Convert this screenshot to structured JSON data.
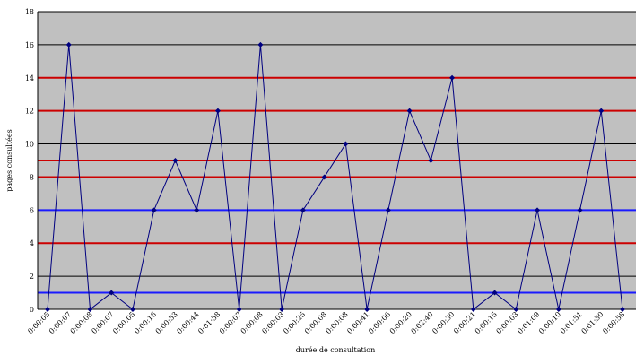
{
  "chart_data": {
    "type": "line",
    "title": "",
    "xlabel": "durée de consultation",
    "ylabel": "pages consultées",
    "ylim": [
      0,
      18
    ],
    "yticks": [
      0,
      2,
      4,
      6,
      8,
      10,
      12,
      14,
      16,
      18
    ],
    "grid": true,
    "legend": "none",
    "x": [
      "0:00:05",
      "0:00:07",
      "0:00:08",
      "0:00:07",
      "0:00:05",
      "0:00:16",
      "0:00:53",
      "0:00:44",
      "0:01:58",
      "0:00:07",
      "0:00:08",
      "0:00:03",
      "0:00:25",
      "0:00:08",
      "0:00:08",
      "0:00:41",
      "0:00:06",
      "0:00:20",
      "0:02:40",
      "0:00:30",
      "0:00:21",
      "0:00:15",
      "0:00:03",
      "0:01:09",
      "0:00:10",
      "0:01:51",
      "0:01:30",
      "0:00:58"
    ],
    "series": [
      {
        "values": [
          0,
          16,
          0,
          1,
          0,
          6,
          9,
          6,
          12,
          0,
          16,
          0,
          6,
          8,
          10,
          0,
          6,
          12,
          9,
          14,
          0,
          1,
          0,
          6,
          0,
          6,
          12,
          0
        ]
      }
    ],
    "reference_lines": [
      {
        "y": 1,
        "color": "#1a1aff"
      },
      {
        "y": 4,
        "color": "#cc0000"
      },
      {
        "y": 6,
        "color": "#1a1aff"
      },
      {
        "y": 8,
        "color": "#cc0000"
      },
      {
        "y": 9,
        "color": "#cc0000"
      },
      {
        "y": 12,
        "color": "#cc0000"
      },
      {
        "y": 14,
        "color": "#cc0000"
      }
    ],
    "colors": {
      "plot_background": "#c0c0c0",
      "gridline": "#000000",
      "series_line": "#000080",
      "marker": "#000080"
    }
  }
}
